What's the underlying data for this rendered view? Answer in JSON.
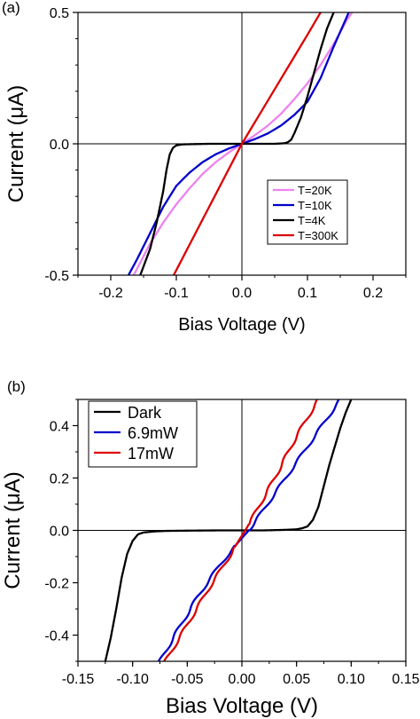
{
  "chart_data": [
    {
      "panel_label": "(a)",
      "type": "line",
      "xlabel": "Bias Voltage (V)",
      "ylabel": "Current (μA)",
      "xlim": [
        -0.25,
        0.25
      ],
      "ylim": [
        -0.5,
        0.5
      ],
      "xticks": [
        "-0.2",
        "-0.1",
        "0.0",
        "0.1",
        "0.2"
      ],
      "xtick_values": [
        -0.2,
        -0.1,
        0.0,
        0.1,
        0.2
      ],
      "yticks": [
        "-0.5",
        "0.0",
        "0.5"
      ],
      "ytick_values": [
        -0.5,
        0.0,
        0.5
      ],
      "zero_lines": true,
      "legend_position": "lower-right",
      "series": [
        {
          "name": "T=20K",
          "color": "#ee82ee",
          "x": [
            -0.165,
            -0.14,
            -0.12,
            -0.1,
            -0.08,
            -0.06,
            -0.04,
            -0.02,
            0.0,
            0.02,
            0.04,
            0.06,
            0.08,
            0.1,
            0.12,
            0.14,
            0.16,
            0.168
          ],
          "y": [
            -0.5,
            -0.38,
            -0.3,
            -0.23,
            -0.17,
            -0.115,
            -0.07,
            -0.033,
            0.0,
            0.033,
            0.07,
            0.115,
            0.17,
            0.23,
            0.3,
            0.38,
            0.47,
            0.5
          ]
        },
        {
          "name": "T=10K",
          "color": "#0000cc",
          "x": [
            -0.173,
            -0.16,
            -0.14,
            -0.12,
            -0.1,
            -0.08,
            -0.06,
            -0.04,
            -0.02,
            0.0,
            0.02,
            0.04,
            0.06,
            0.08,
            0.1,
            0.12,
            0.14,
            0.163
          ],
          "y": [
            -0.5,
            -0.44,
            -0.34,
            -0.24,
            -0.16,
            -0.11,
            -0.07,
            -0.04,
            -0.018,
            0.0,
            0.018,
            0.04,
            0.07,
            0.11,
            0.16,
            0.25,
            0.37,
            0.5
          ]
        },
        {
          "name": "T=4K",
          "color": "#000000",
          "x": [
            -0.155,
            -0.14,
            -0.13,
            -0.12,
            -0.115,
            -0.11,
            -0.105,
            -0.1,
            -0.09,
            -0.07,
            -0.05,
            -0.03,
            0.0,
            0.03,
            0.05,
            0.065,
            0.07,
            0.075,
            0.08,
            0.09,
            0.1,
            0.11,
            0.12,
            0.13,
            0.14
          ],
          "y": [
            -0.5,
            -0.4,
            -0.3,
            -0.18,
            -0.1,
            -0.04,
            -0.015,
            -0.006,
            -0.002,
            -0.001,
            0.0,
            0.0,
            0.0,
            0.0,
            0.0,
            0.002,
            0.006,
            0.015,
            0.04,
            0.1,
            0.18,
            0.27,
            0.36,
            0.44,
            0.5
          ]
        },
        {
          "name": "T=300K",
          "color": "#dd0000",
          "x": [
            -0.104,
            0.0,
            0.1,
            0.12
          ],
          "y": [
            -0.5,
            0.0,
            0.415,
            0.5
          ]
        }
      ]
    },
    {
      "panel_label": "(b)",
      "type": "line",
      "xlabel": "Bias Voltage (V)",
      "ylabel": "Current (μA)",
      "xlim": [
        -0.15,
        0.15
      ],
      "ylim": [
        -0.5,
        0.5
      ],
      "xticks": [
        "-0.15",
        "-0.10",
        "-0.05",
        "0.00",
        "0.05",
        "0.10",
        "0.15"
      ],
      "xtick_values": [
        -0.15,
        -0.1,
        -0.05,
        0.0,
        0.05,
        0.1,
        0.15
      ],
      "yticks": [
        "-0.4",
        "-0.2",
        "0.0",
        "0.2",
        "0.4"
      ],
      "ytick_values": [
        -0.4,
        -0.2,
        0.0,
        0.2,
        0.4
      ],
      "zero_lines": true,
      "legend_position": "top-left",
      "series": [
        {
          "name": "Dark",
          "color": "#000000",
          "x": [
            -0.125,
            -0.12,
            -0.115,
            -0.11,
            -0.105,
            -0.1,
            -0.095,
            -0.09,
            -0.08,
            -0.07,
            -0.05,
            -0.02,
            0.0,
            0.02,
            0.04,
            0.05,
            0.055,
            0.06,
            0.065,
            0.07,
            0.075,
            0.08,
            0.085,
            0.09,
            0.095,
            0.1
          ],
          "y": [
            -0.5,
            -0.41,
            -0.3,
            -0.18,
            -0.09,
            -0.04,
            -0.015,
            -0.008,
            -0.004,
            -0.002,
            -0.001,
            0.0,
            0.0,
            0.0,
            0.002,
            0.004,
            0.008,
            0.015,
            0.04,
            0.09,
            0.17,
            0.25,
            0.32,
            0.39,
            0.45,
            0.5
          ]
        },
        {
          "name": "6.9mW",
          "color": "#0000cc",
          "wavy": true,
          "x": [
            -0.075,
            -0.06,
            -0.04,
            -0.02,
            0.0,
            0.01,
            0.02,
            0.04,
            0.06,
            0.08,
            0.09
          ],
          "y": [
            -0.5,
            -0.39,
            -0.25,
            -0.13,
            -0.03,
            0.02,
            0.08,
            0.2,
            0.32,
            0.44,
            0.5
          ]
        },
        {
          "name": "17mW",
          "color": "#dd0000",
          "wavy": true,
          "x": [
            -0.07,
            -0.05,
            -0.03,
            -0.01,
            0.0,
            0.01,
            0.03,
            0.05,
            0.07
          ],
          "y": [
            -0.5,
            -0.36,
            -0.22,
            -0.09,
            -0.02,
            0.05,
            0.2,
            0.36,
            0.5
          ]
        }
      ]
    }
  ]
}
